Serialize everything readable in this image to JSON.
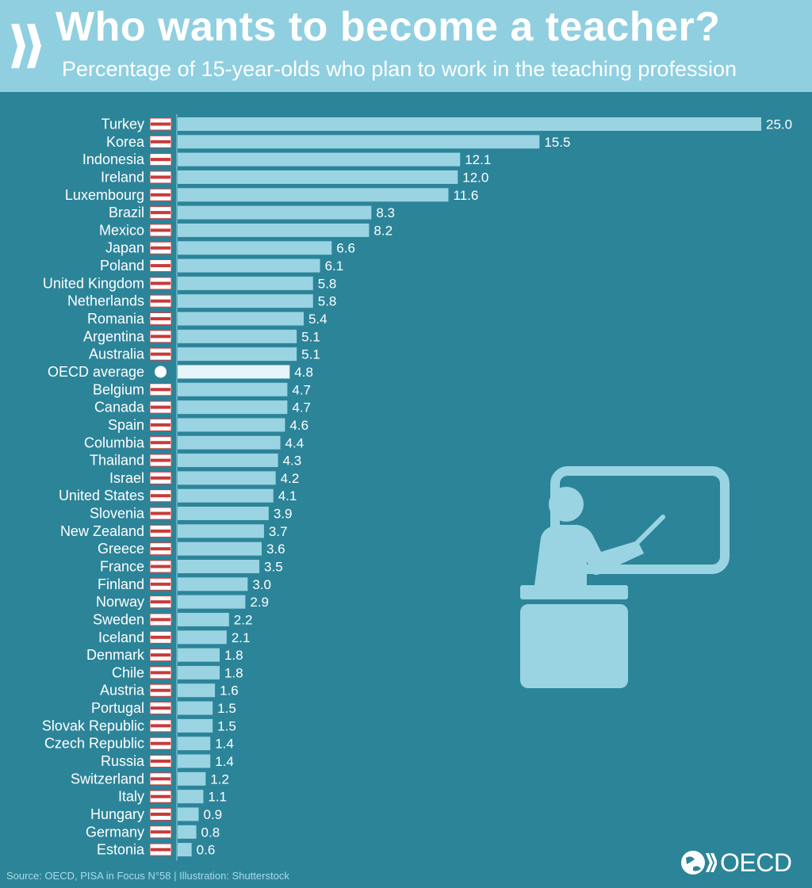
{
  "header": {
    "title": "Who wants to become a teacher?",
    "subtitle": "Percentage of 15-year-olds who plan to work in the teaching profession"
  },
  "footer": {
    "source": "Source: OECD, PISA in Focus N°58 | Illustration: Shutterstock",
    "logo_text": "OECD"
  },
  "colors": {
    "header_bg": "#8fcfe0",
    "panel_bg": "#2c8499",
    "bar": "#9ad4e2",
    "bar_highlight": "#e6f5f9",
    "text": "#ffffff"
  },
  "chart_data": {
    "type": "bar",
    "orientation": "horizontal",
    "title": "",
    "xlabel": "",
    "ylabel": "",
    "xlim": [
      0,
      25
    ],
    "grid": false,
    "highlight": "OECD average",
    "categories": [
      "Turkey",
      "Korea",
      "Indonesia",
      "Ireland",
      "Luxembourg",
      "Brazil",
      "Mexico",
      "Japan",
      "Poland",
      "United Kingdom",
      "Netherlands",
      "Romania",
      "Argentina",
      "Australia",
      "OECD average",
      "Belgium",
      "Canada",
      "Spain",
      "Columbia",
      "Thailand",
      "Israel",
      "United States",
      "Slovenia",
      "New Zealand",
      "Greece",
      "France",
      "Finland",
      "Norway",
      "Sweden",
      "Iceland",
      "Denmark",
      "Chile",
      "Austria",
      "Portugal",
      "Slovak Republic",
      "Czech Republic",
      "Russia",
      "Switzerland",
      "Italy",
      "Hungary",
      "Germany",
      "Estonia"
    ],
    "values": [
      25.0,
      15.5,
      12.1,
      12.0,
      11.6,
      8.3,
      8.2,
      6.6,
      6.1,
      5.8,
      5.8,
      5.4,
      5.1,
      5.1,
      4.8,
      4.7,
      4.7,
      4.6,
      4.4,
      4.3,
      4.2,
      4.1,
      3.9,
      3.7,
      3.6,
      3.5,
      3.0,
      2.9,
      2.2,
      2.1,
      1.8,
      1.8,
      1.6,
      1.5,
      1.5,
      1.4,
      1.4,
      1.2,
      1.1,
      0.9,
      0.8,
      0.6
    ],
    "value_labels": [
      "25.0",
      "15.5",
      "12.1",
      "12.0",
      "11.6",
      "8.3",
      "8.2",
      "6.6",
      "6.1",
      "5.8",
      "5.8",
      "5.4",
      "5.1",
      "5.1",
      "4.8",
      "4.7",
      "4.7",
      "4.6",
      "4.4",
      "4.3",
      "4.2",
      "4.1",
      "3.9",
      "3.7",
      "3.6",
      "3.5",
      "3.0",
      "2.9",
      "2.2",
      "2.1",
      "1.8",
      "1.8",
      "1.6",
      "1.5",
      "1.5",
      "1.4",
      "1.4",
      "1.2",
      "1.1",
      "0.9",
      "0.8",
      "0.6"
    ]
  }
}
